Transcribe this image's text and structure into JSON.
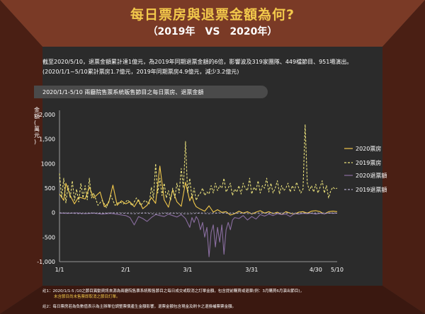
{
  "page": {
    "title": "每日票房與退票金額為何?",
    "subtitle": "（2019年　VS　2020年）",
    "summary_line1": "截至2020/5/10，退票金額累計達1億元，為2019年同期退票金額的6倍，影響波及319家團隊、449檔節目、951場演出。",
    "summary_line2": "(2020/1/1~5/10累計票房1.7億元，2019年同期票房4.9億元，減少3.2億元)",
    "chart_header": "2020/1/1-5/10 兩廳院售票系統販售節目之每日票房、退票金額",
    "note1_label": "註1：",
    "note1_text": "2020/1/1-5 /10之節目異動資訊來源為兩廳院售票系統販售節目之每日成交或取消之訂單金額，包含提前購買或退票(例：3月購買6月演出節目)，",
    "note1_highlight": "未含節目尚未售票即取消之節目訂單。",
    "note2_label": "註2：",
    "note2_text": "每日票房若為負數值表示為主辦單位調整票價產生金額影響，退票金額包含現金及刷卡之退換補票票金額。",
    "colors": {
      "background": "#2b2b2b",
      "frame": "#4a1f14",
      "title": "#f2c84b",
      "series_2020_box": "#f2c84b",
      "series_2019_box": "#e8df7a",
      "series_2020_refund": "#8a6ea0",
      "series_2019_refund": "#b0a8c8"
    }
  },
  "chart_data": {
    "type": "line",
    "ylabel": "金額(萬元)",
    "ylim": [
      -1000,
      2000
    ],
    "yticks": [
      -1000,
      -500,
      0,
      500,
      1000,
      1500,
      2000
    ],
    "ytick_labels": [
      "-1,000",
      "-500",
      "0",
      "500",
      "1000",
      "1,500",
      "2,000"
    ],
    "xlim": [
      0,
      130
    ],
    "xticks": [
      {
        "x": 0,
        "label": "1/1"
      },
      {
        "x": 31,
        "label": "2/1"
      },
      {
        "x": 60,
        "label": "3/1"
      },
      {
        "x": 90,
        "label": "3/31"
      },
      {
        "x": 120,
        "label": "4/30"
      },
      {
        "x": 130,
        "label": "5/10"
      }
    ],
    "legend_position": "right",
    "series": [
      {
        "name": "2020票房",
        "color": "#f2c84b",
        "dash": "",
        "width": 1.1,
        "points": [
          [
            0,
            380
          ],
          [
            2,
            250
          ],
          [
            3,
            600
          ],
          [
            5,
            350
          ],
          [
            7,
            180
          ],
          [
            9,
            320
          ],
          [
            12,
            280
          ],
          [
            14,
            520
          ],
          [
            16,
            300
          ],
          [
            19,
            420
          ],
          [
            21,
            120
          ],
          [
            23,
            200
          ],
          [
            25,
            560
          ],
          [
            27,
            150
          ],
          [
            29,
            240
          ],
          [
            31,
            180
          ],
          [
            33,
            220
          ],
          [
            35,
            120
          ],
          [
            37,
            260
          ],
          [
            39,
            80
          ],
          [
            41,
            150
          ],
          [
            43,
            310
          ],
          [
            45,
            190
          ],
          [
            47,
            950
          ],
          [
            49,
            260
          ],
          [
            51,
            110
          ],
          [
            53,
            460
          ],
          [
            55,
            220
          ],
          [
            57,
            130
          ],
          [
            59,
            620
          ],
          [
            61,
            240
          ],
          [
            62,
            340
          ],
          [
            63,
            200
          ],
          [
            64,
            120
          ],
          [
            66,
            70
          ],
          [
            68,
            30
          ],
          [
            70,
            140
          ],
          [
            72,
            10
          ],
          [
            74,
            60
          ],
          [
            76,
            5
          ],
          [
            78,
            20
          ],
          [
            80,
            -50
          ],
          [
            82,
            -20
          ],
          [
            84,
            30
          ],
          [
            86,
            -10
          ],
          [
            88,
            20
          ],
          [
            90,
            -30
          ],
          [
            92,
            10
          ],
          [
            94,
            40
          ],
          [
            96,
            -10
          ],
          [
            98,
            20
          ],
          [
            100,
            -20
          ],
          [
            102,
            10
          ],
          [
            104,
            -40
          ],
          [
            106,
            20
          ],
          [
            108,
            -10
          ],
          [
            110,
            -30
          ],
          [
            112,
            10
          ],
          [
            114,
            20
          ],
          [
            116,
            -10
          ],
          [
            118,
            30
          ],
          [
            120,
            40
          ],
          [
            122,
            20
          ],
          [
            124,
            -30
          ],
          [
            126,
            20
          ],
          [
            128,
            30
          ],
          [
            130,
            20
          ]
        ]
      },
      {
        "name": "2019票房",
        "color": "#e8df7a",
        "dash": "3,2",
        "width": 1.1,
        "points": [
          [
            0,
            800
          ],
          [
            1,
            300
          ],
          [
            2,
            700
          ],
          [
            3,
            200
          ],
          [
            4,
            550
          ],
          [
            5,
            300
          ],
          [
            6,
            650
          ],
          [
            7,
            250
          ],
          [
            8,
            480
          ],
          [
            9,
            220
          ],
          [
            10,
            600
          ],
          [
            11,
            300
          ],
          [
            12,
            550
          ],
          [
            13,
            260
          ],
          [
            14,
            700
          ],
          [
            15,
            300
          ],
          [
            16,
            400
          ],
          [
            18,
            150
          ],
          [
            20,
            250
          ],
          [
            22,
            100
          ],
          [
            24,
            350
          ],
          [
            26,
            150
          ],
          [
            28,
            220
          ],
          [
            30,
            180
          ],
          [
            32,
            260
          ],
          [
            34,
            140
          ],
          [
            36,
            300
          ],
          [
            38,
            150
          ],
          [
            40,
            250
          ],
          [
            42,
            180
          ],
          [
            43,
            520
          ],
          [
            44,
            300
          ],
          [
            45,
            1000
          ],
          [
            46,
            400
          ],
          [
            47,
            700
          ],
          [
            48,
            350
          ],
          [
            49,
            600
          ],
          [
            50,
            300
          ],
          [
            51,
            450
          ],
          [
            52,
            250
          ],
          [
            53,
            500
          ],
          [
            54,
            300
          ],
          [
            55,
            600
          ],
          [
            56,
            400
          ],
          [
            57,
            900
          ],
          [
            58,
            500
          ],
          [
            59,
            1450
          ],
          [
            60,
            400
          ],
          [
            61,
            700
          ],
          [
            62,
            300
          ],
          [
            63,
            500
          ],
          [
            64,
            250
          ],
          [
            65,
            350
          ],
          [
            66,
            400
          ],
          [
            67,
            500
          ],
          [
            68,
            350
          ],
          [
            69,
            420
          ],
          [
            70,
            380
          ],
          [
            71,
            550
          ],
          [
            72,
            400
          ],
          [
            73,
            600
          ],
          [
            74,
            450
          ],
          [
            75,
            550
          ],
          [
            76,
            500
          ],
          [
            77,
            700
          ],
          [
            78,
            420
          ],
          [
            79,
            500
          ],
          [
            80,
            600
          ],
          [
            81,
            350
          ],
          [
            82,
            480
          ],
          [
            83,
            420
          ],
          [
            84,
            550
          ],
          [
            85,
            380
          ],
          [
            86,
            600
          ],
          [
            87,
            500
          ],
          [
            88,
            450
          ],
          [
            89,
            700
          ],
          [
            90,
            380
          ],
          [
            91,
            520
          ],
          [
            92,
            450
          ],
          [
            93,
            650
          ],
          [
            94,
            400
          ],
          [
            95,
            550
          ],
          [
            96,
            500
          ],
          [
            97,
            700
          ],
          [
            98,
            420
          ],
          [
            99,
            600
          ],
          [
            100,
            400
          ],
          [
            101,
            500
          ],
          [
            102,
            650
          ],
          [
            103,
            380
          ],
          [
            104,
            550
          ],
          [
            105,
            450
          ],
          [
            106,
            500
          ],
          [
            107,
            600
          ],
          [
            108,
            420
          ],
          [
            109,
            550
          ],
          [
            110,
            450
          ],
          [
            111,
            620
          ],
          [
            112,
            500
          ],
          [
            113,
            400
          ],
          [
            114,
            480
          ],
          [
            115,
            1800
          ],
          [
            116,
            600
          ],
          [
            117,
            450
          ],
          [
            118,
            550
          ],
          [
            119,
            420
          ],
          [
            120,
            580
          ],
          [
            121,
            400
          ],
          [
            122,
            520
          ],
          [
            123,
            650
          ],
          [
            124,
            400
          ],
          [
            125,
            550
          ],
          [
            126,
            300
          ],
          [
            127,
            450
          ],
          [
            128,
            520
          ],
          [
            129,
            480
          ],
          [
            130,
            500
          ]
        ]
      },
      {
        "name": "2020退票額",
        "color": "#8a6ea0",
        "dash": "",
        "width": 1.1,
        "points": [
          [
            0,
            -10
          ],
          [
            4,
            -15
          ],
          [
            8,
            -5
          ],
          [
            12,
            -20
          ],
          [
            16,
            -10
          ],
          [
            20,
            -30
          ],
          [
            24,
            -15
          ],
          [
            28,
            -40
          ],
          [
            31,
            -60
          ],
          [
            33,
            -100
          ],
          [
            35,
            -250
          ],
          [
            37,
            -80
          ],
          [
            39,
            -120
          ],
          [
            41,
            -180
          ],
          [
            43,
            -100
          ],
          [
            45,
            -40
          ],
          [
            47,
            -60
          ],
          [
            49,
            -80
          ],
          [
            51,
            -30
          ],
          [
            53,
            -60
          ],
          [
            55,
            -90
          ],
          [
            57,
            -40
          ],
          [
            59,
            -120
          ],
          [
            61,
            -300
          ],
          [
            62,
            -100
          ],
          [
            63,
            -200
          ],
          [
            64,
            -80
          ],
          [
            65,
            -150
          ],
          [
            66,
            -350
          ],
          [
            67,
            -200
          ],
          [
            68,
            -500
          ],
          [
            69,
            -300
          ],
          [
            70,
            -900
          ],
          [
            71,
            -400
          ],
          [
            72,
            -250
          ],
          [
            73,
            -700
          ],
          [
            74,
            -300
          ],
          [
            75,
            -600
          ],
          [
            76,
            -250
          ],
          [
            77,
            -850
          ],
          [
            78,
            -350
          ],
          [
            79,
            -200
          ],
          [
            80,
            -350
          ],
          [
            81,
            -150
          ],
          [
            82,
            -100
          ],
          [
            84,
            -120
          ],
          [
            86,
            -60
          ],
          [
            88,
            -150
          ],
          [
            90,
            -80
          ],
          [
            92,
            -130
          ],
          [
            94,
            -40
          ],
          [
            96,
            -70
          ],
          [
            98,
            -30
          ],
          [
            100,
            -60
          ],
          [
            102,
            -20
          ],
          [
            104,
            -40
          ],
          [
            106,
            -30
          ],
          [
            108,
            -80
          ],
          [
            110,
            -20
          ],
          [
            112,
            -30
          ],
          [
            114,
            -15
          ],
          [
            116,
            -20
          ],
          [
            118,
            -10
          ],
          [
            120,
            -30
          ],
          [
            122,
            -10
          ],
          [
            124,
            -25
          ],
          [
            126,
            -5
          ],
          [
            128,
            -15
          ],
          [
            130,
            -10
          ]
        ]
      },
      {
        "name": "2019退票額",
        "color": "#b0a8c8",
        "dash": "3,2",
        "width": 1,
        "points": [
          [
            0,
            -5
          ],
          [
            5,
            -10
          ],
          [
            10,
            -20
          ],
          [
            15,
            -8
          ],
          [
            20,
            -15
          ],
          [
            25,
            -5
          ],
          [
            30,
            -12
          ],
          [
            35,
            -20
          ],
          [
            40,
            -8
          ],
          [
            45,
            -30
          ],
          [
            50,
            -10
          ],
          [
            55,
            -15
          ],
          [
            60,
            -25
          ],
          [
            65,
            -10
          ],
          [
            70,
            -20
          ],
          [
            75,
            -8
          ],
          [
            80,
            -15
          ],
          [
            85,
            -12
          ],
          [
            90,
            -20
          ],
          [
            95,
            -10
          ],
          [
            100,
            -15
          ],
          [
            105,
            -8
          ],
          [
            110,
            -20
          ],
          [
            115,
            -10
          ],
          [
            120,
            -15
          ],
          [
            125,
            -12
          ],
          [
            130,
            -10
          ]
        ]
      }
    ]
  }
}
